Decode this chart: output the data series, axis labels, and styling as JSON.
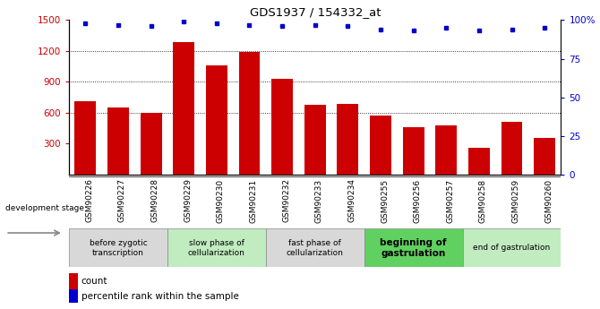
{
  "title": "GDS1937 / 154332_at",
  "samples": [
    "GSM90226",
    "GSM90227",
    "GSM90228",
    "GSM90229",
    "GSM90230",
    "GSM90231",
    "GSM90232",
    "GSM90233",
    "GSM90234",
    "GSM90255",
    "GSM90256",
    "GSM90257",
    "GSM90258",
    "GSM90259",
    "GSM90260"
  ],
  "counts": [
    710,
    650,
    600,
    1290,
    1060,
    1190,
    930,
    680,
    690,
    570,
    460,
    480,
    260,
    510,
    360
  ],
  "percentile_ranks": [
    98,
    97,
    96,
    99,
    98,
    97,
    96,
    97,
    96,
    94,
    93,
    95,
    93,
    94,
    95
  ],
  "ylim_left": [
    0,
    1500
  ],
  "ylim_right": [
    0,
    100
  ],
  "yticks_left": [
    300,
    600,
    900,
    1200,
    1500
  ],
  "yticks_right": [
    0,
    25,
    50,
    75,
    100
  ],
  "bar_color": "#cc0000",
  "dot_color": "#0000cc",
  "stages": [
    {
      "label": "before zygotic\ntranscription",
      "start": 0,
      "end": 2,
      "color": "#d8d8d8",
      "bold": false
    },
    {
      "label": "slow phase of\ncellularization",
      "start": 3,
      "end": 5,
      "color": "#c0ecc0",
      "bold": false
    },
    {
      "label": "fast phase of\ncellularization",
      "start": 6,
      "end": 8,
      "color": "#d8d8d8",
      "bold": false
    },
    {
      "label": "beginning of\ngastrulation",
      "start": 9,
      "end": 11,
      "color": "#60d060",
      "bold": true
    },
    {
      "label": "end of gastrulation",
      "start": 12,
      "end": 14,
      "color": "#c0ecc0",
      "bold": false
    }
  ],
  "dev_stage_label": "development stage",
  "legend_count_label": "count",
  "legend_percentile_label": "percentile rank within the sample",
  "bar_color_legend": "#cc0000",
  "dot_color_legend": "#0000cc",
  "tick_label_color_left": "#cc0000",
  "tick_label_color_right": "#0000cc",
  "title_color": "#000000",
  "xticklabel_bg": "#d0d0d0"
}
